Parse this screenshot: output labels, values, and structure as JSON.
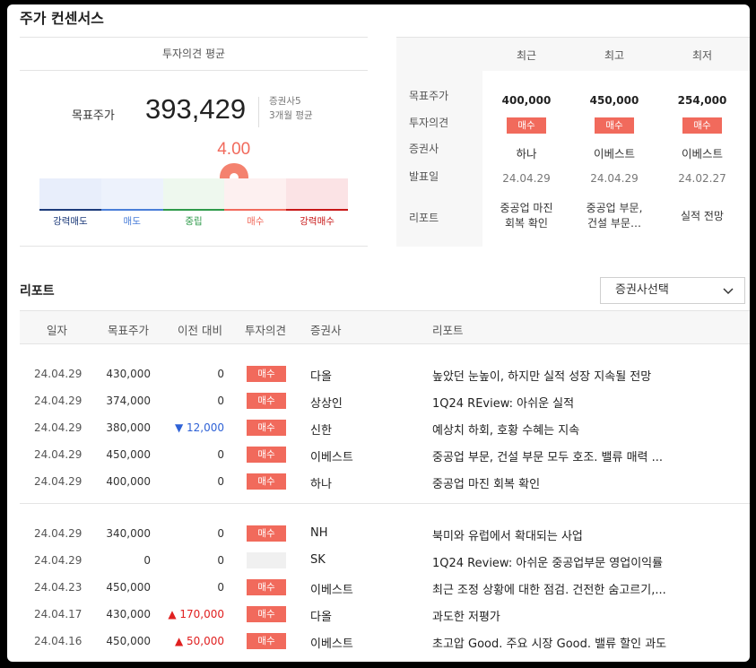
{
  "section_title": "주가 컨센서스",
  "opinion": {
    "header": "투자의견 평균",
    "target_label": "목표주가",
    "target_value": "393,429",
    "brokers": "증권사5",
    "period": "3개월 평균",
    "score": "4.00",
    "score_level": 0.63,
    "scale": [
      {
        "label": "강력매도",
        "color": "#1c3a7a",
        "bg": "#e8eefb"
      },
      {
        "label": "매도",
        "color": "#4a7ed8",
        "bg": "#edf2fc"
      },
      {
        "label": "중립",
        "color": "#2e9a4a",
        "bg": "#eef8ee"
      },
      {
        "label": "매수",
        "color": "#f16a5c",
        "bg": "#fdf0f0"
      },
      {
        "label": "강력매수",
        "color": "#c81818",
        "bg": "#fbe3e5"
      }
    ]
  },
  "consensus": {
    "columns": [
      "최근",
      "최고",
      "최저"
    ],
    "row_labels": [
      "목표주가",
      "투자의견",
      "증권사",
      "발표일",
      "리포트"
    ],
    "cols": [
      {
        "target": "400,000",
        "opinion": "매수",
        "broker": "하나",
        "date": "24.04.29",
        "report1": "중공업 마진",
        "report2": "회복 확인"
      },
      {
        "target": "450,000",
        "opinion": "매수",
        "broker": "이베스트",
        "date": "24.04.29",
        "report1": "중공업 부문,",
        "report2": "건설 부문…"
      },
      {
        "target": "254,000",
        "opinion": "매수",
        "broker": "이베스트",
        "date": "24.02.27",
        "report1": "실적 전망",
        "report2": ""
      }
    ]
  },
  "reports": {
    "title": "리포트",
    "broker_select": "증권사선택",
    "headers": [
      "일자",
      "목표주가",
      "이전 대비",
      "투자의견",
      "증권사",
      "리포트"
    ],
    "rows": [
      {
        "date": "24.04.29",
        "target": "430,000",
        "change": "0",
        "dir": "",
        "opinion": "매수",
        "broker": "다올",
        "title": "높았던 눈높이, 하지만 실적 성장 지속될 전망"
      },
      {
        "date": "24.04.29",
        "target": "374,000",
        "change": "0",
        "dir": "",
        "opinion": "매수",
        "broker": "상상인",
        "title": "1Q24 REview: 아쉬운 실적"
      },
      {
        "date": "24.04.29",
        "target": "380,000",
        "change": "▼ 12,000",
        "dir": "down",
        "opinion": "매수",
        "broker": "신한",
        "title": "예상치 하회, 호황 수혜는 지속"
      },
      {
        "date": "24.04.29",
        "target": "450,000",
        "change": "0",
        "dir": "",
        "opinion": "매수",
        "broker": "이베스트",
        "title": "중공업 부문, 건설 부문 모두 호조. 밸류 매력 ..."
      },
      {
        "date": "24.04.29",
        "target": "400,000",
        "change": "0",
        "dir": "",
        "opinion": "매수",
        "broker": "하나",
        "title": "중공업 마진 회복 확인"
      },
      {
        "date": "24.04.29",
        "target": "340,000",
        "change": "0",
        "dir": "",
        "opinion": "매수",
        "broker": "NH",
        "title": "북미와 유럽에서 확대되는 사업"
      },
      {
        "date": "24.04.29",
        "target": "0",
        "change": "0",
        "dir": "",
        "opinion": "",
        "broker": "SK",
        "title": "1Q24 Review: 아쉬운 중공업부문 영업이익률"
      },
      {
        "date": "24.04.23",
        "target": "450,000",
        "change": "0",
        "dir": "",
        "opinion": "매수",
        "broker": "이베스트",
        "title": "최근 조정 상황에 대한 점검. 건전한 숨고르기,..."
      },
      {
        "date": "24.04.17",
        "target": "430,000",
        "change": "▲ 170,000",
        "dir": "up",
        "opinion": "매수",
        "broker": "다올",
        "title": "과도한 저평가"
      },
      {
        "date": "24.04.16",
        "target": "450,000",
        "change": "▲ 50,000",
        "dir": "up",
        "opinion": "매수",
        "broker": "이베스트",
        "title": "초고압 Good. 주요 시장 Good. 밸류 할인 과도"
      }
    ]
  }
}
